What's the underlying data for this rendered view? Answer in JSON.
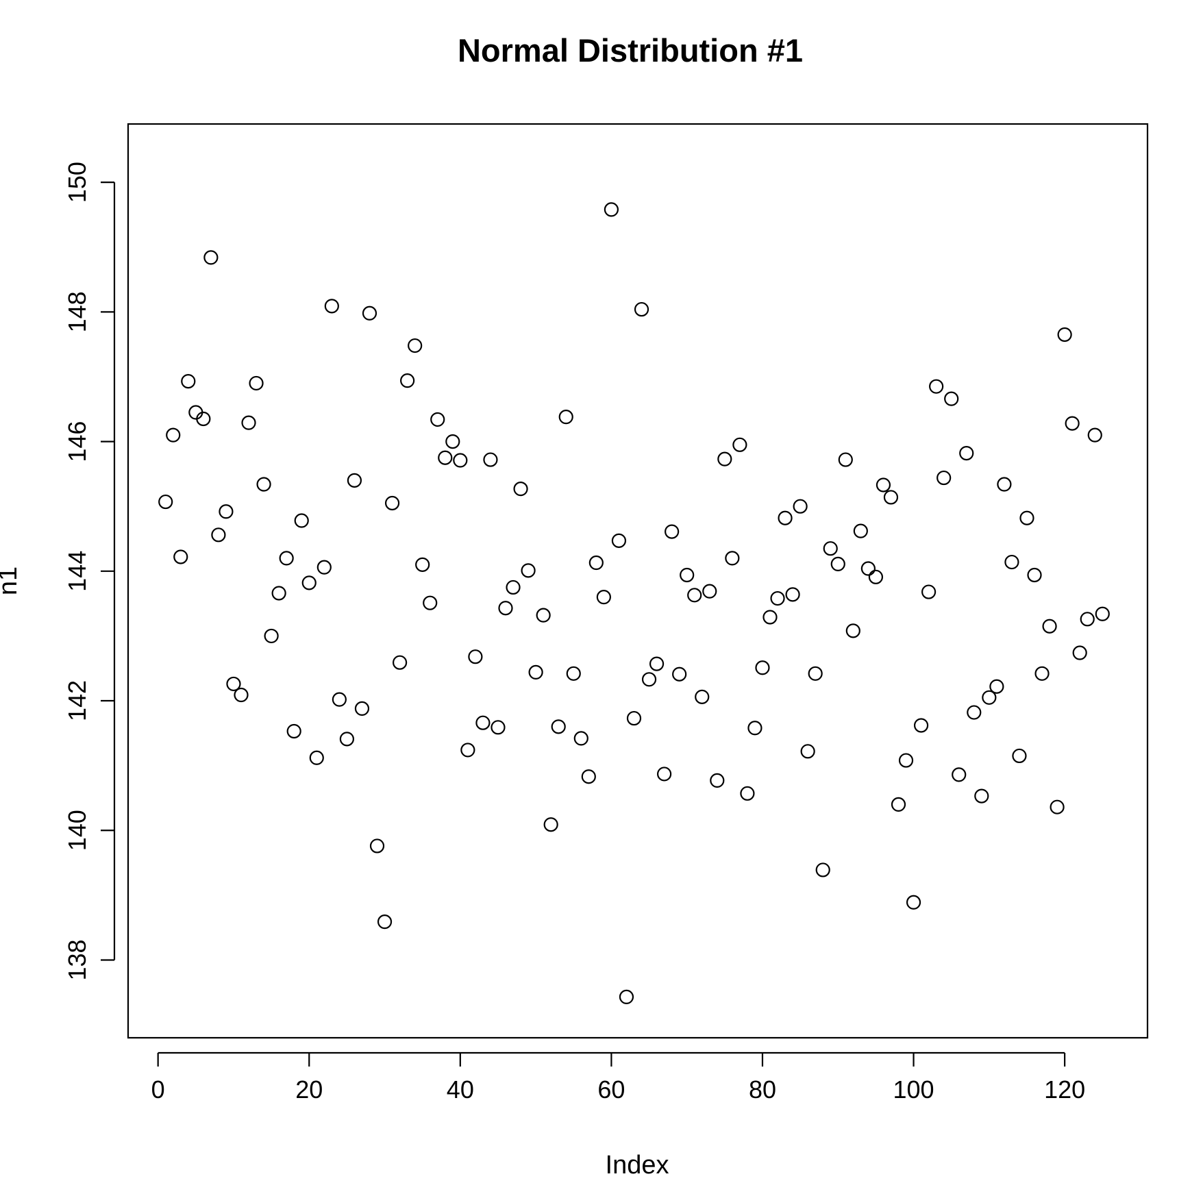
{
  "chart_data": {
    "type": "scatter",
    "title": "Normal Distribution #1",
    "xlabel": "Index",
    "ylabel": "n1",
    "xlim": [
      -3.96,
      130.96
    ],
    "ylim": [
      136.8,
      150.9
    ],
    "xticks": [
      0,
      20,
      40,
      60,
      80,
      100,
      120
    ],
    "yticks": [
      138,
      140,
      142,
      144,
      146,
      148,
      150
    ],
    "grid": false,
    "legend": "none",
    "marker": "open-circle",
    "colors": {
      "point": "#000000",
      "axes": "#000000",
      "background": "#ffffff"
    },
    "x": [
      1,
      2,
      3,
      4,
      5,
      6,
      7,
      8,
      9,
      10,
      11,
      12,
      13,
      14,
      15,
      16,
      17,
      18,
      19,
      20,
      21,
      22,
      23,
      24,
      25,
      26,
      27,
      28,
      29,
      30,
      31,
      32,
      33,
      34,
      35,
      36,
      37,
      38,
      39,
      40,
      41,
      42,
      43,
      44,
      45,
      46,
      47,
      48,
      49,
      50,
      51,
      52,
      53,
      54,
      55,
      56,
      57,
      58,
      59,
      60,
      61,
      62,
      63,
      64,
      65,
      66,
      67,
      68,
      69,
      70,
      71,
      72,
      73,
      74,
      75,
      76,
      77,
      78,
      79,
      80,
      81,
      82,
      83,
      84,
      85,
      86,
      87,
      88,
      89,
      90,
      91,
      92,
      93,
      94,
      95,
      96,
      97,
      98,
      99,
      100,
      101,
      102,
      103,
      104,
      105,
      106,
      107,
      108,
      109,
      110,
      111,
      112,
      113,
      114,
      115,
      116,
      117,
      118,
      119,
      120,
      121,
      122,
      123,
      124,
      125
    ],
    "y": [
      145.07,
      146.1,
      144.22,
      146.93,
      146.45,
      146.35,
      148.84,
      144.56,
      144.92,
      142.26,
      142.09,
      146.29,
      146.9,
      145.34,
      143.0,
      143.66,
      144.2,
      141.53,
      144.78,
      143.82,
      141.12,
      144.06,
      148.09,
      142.02,
      141.41,
      145.4,
      141.88,
      147.98,
      139.76,
      138.59,
      145.05,
      142.59,
      146.94,
      147.48,
      144.1,
      143.51,
      146.34,
      145.75,
      146.0,
      145.71,
      141.24,
      142.68,
      141.66,
      145.72,
      141.59,
      143.43,
      143.75,
      145.27,
      144.01,
      142.44,
      143.32,
      140.09,
      141.6,
      146.38,
      142.42,
      141.42,
      140.83,
      144.13,
      143.6,
      149.58,
      144.47,
      137.43,
      141.73,
      148.04,
      142.33,
      142.57,
      140.87,
      144.61,
      142.41,
      143.94,
      143.63,
      142.06,
      143.69,
      140.77,
      145.73,
      144.2,
      145.95,
      140.57,
      141.58,
      142.51,
      143.29,
      143.58,
      144.82,
      143.64,
      145.0,
      141.22,
      142.42,
      139.39,
      144.35,
      144.11,
      145.72,
      143.08,
      144.62,
      144.04,
      143.91,
      145.33,
      145.14,
      140.4,
      141.08,
      138.89,
      141.62,
      143.68,
      146.85,
      145.44,
      146.66,
      140.86,
      145.82,
      141.82,
      140.53,
      142.05,
      142.22,
      145.34,
      144.14,
      141.15,
      144.82,
      143.94,
      142.42,
      143.15,
      140.36,
      147.65,
      146.28,
      142.74,
      143.26,
      146.1,
      143.34
    ]
  }
}
